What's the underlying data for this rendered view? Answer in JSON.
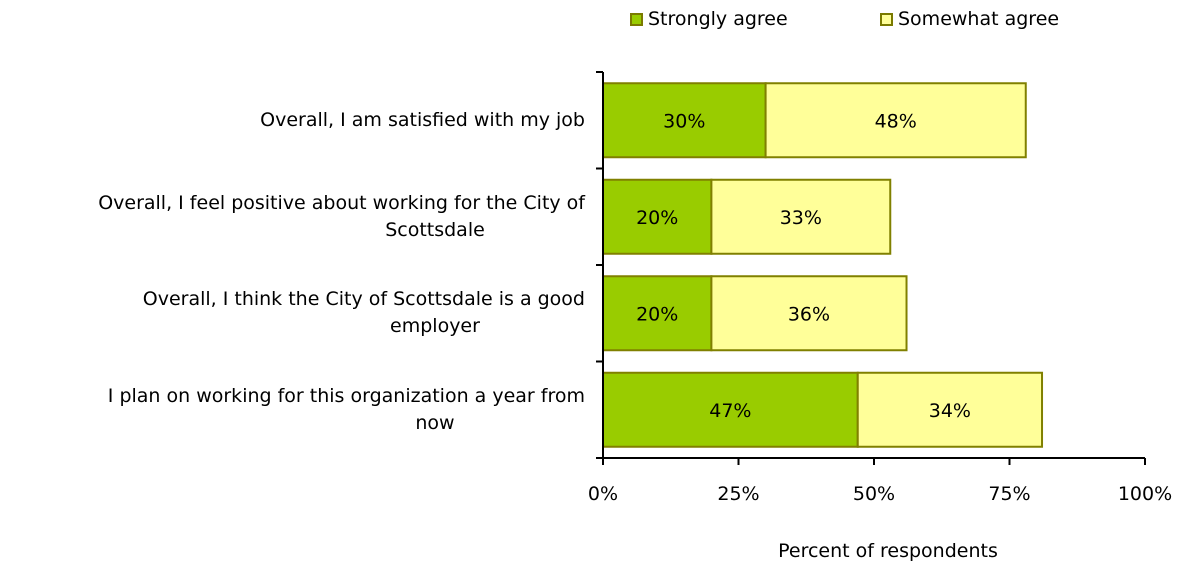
{
  "chart_data": {
    "type": "bar",
    "orientation": "horizontal",
    "stacked": true,
    "categories": [
      "Overall, I am satisfied with my job",
      "Overall, I feel positive about working for the City of Scottsdale",
      "Overall, I think the City of Scottsdale is a good employer",
      "I plan on working for this organization a year from now"
    ],
    "category_lines": [
      [
        "Overall, I am satisfied with my job"
      ],
      [
        "Overall, I feel positive about working for the City of",
        "Scottsdale"
      ],
      [
        "Overall, I think the City of Scottsdale is a good",
        "employer"
      ],
      [
        "I plan on working for this organization a year from",
        "now"
      ]
    ],
    "series": [
      {
        "name": "Strongly agree",
        "values": [
          30,
          20,
          20,
          47
        ],
        "labels": [
          "30%",
          "20%",
          "20%",
          "47%"
        ],
        "color": "#99cc00"
      },
      {
        "name": "Somewhat agree",
        "values": [
          48,
          33,
          36,
          34
        ],
        "labels": [
          "48%",
          "33%",
          "36%",
          "34%"
        ],
        "color": "#ffff99"
      }
    ],
    "xlabel": "Percent of respondents",
    "ylabel": "",
    "xlim": [
      0,
      100
    ],
    "xticks": [
      "0%",
      "25%",
      "50%",
      "75%",
      "100%"
    ],
    "legend_position": "top",
    "grid": false,
    "border_color": "#808000"
  }
}
